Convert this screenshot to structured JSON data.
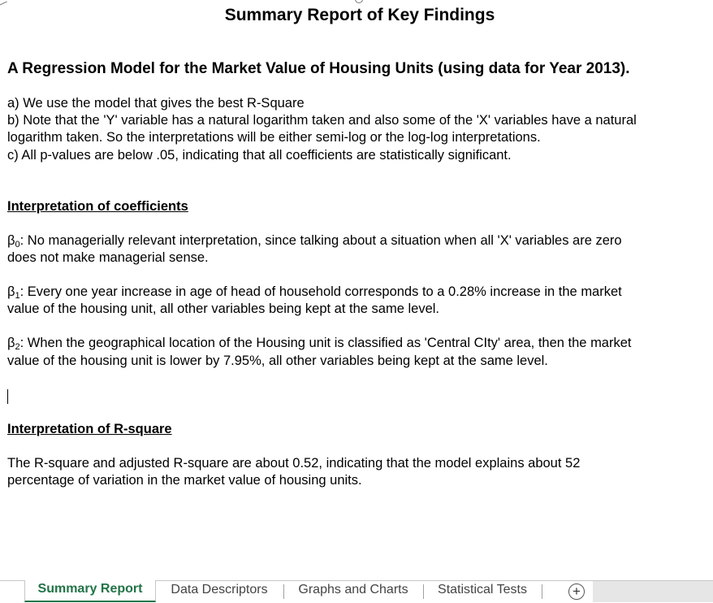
{
  "title": "Summary Report of Key Findings",
  "heading": "A Regression Model for the Market Value of Housing Units (using data for Year 2013).",
  "points": {
    "a": "a)  We use the model that gives the best R-Square",
    "b1": "b)  Note that the 'Y' variable has a natural logarithm taken and also some of the 'X' variables have a natural",
    "b2": "logarithm taken. So the interpretations will be either semi-log or the log-log interpretations.",
    "c": "c)  All p-values are below .05, indicating that all coefficients are statistically significant."
  },
  "coefficients": {
    "header": "Interpretation of coefficients",
    "beta_symbol": "β",
    "beta0": {
      "sub": "0",
      "line1": ": No managerially relevant interpretation, since talking about a situation when all 'X' variables are zero",
      "line2": "does not make managerial sense."
    },
    "beta1": {
      "sub": "1",
      "line1": ": Every one year increase in age of head of household corresponds to a 0.28% increase in the market",
      "line2": "value of the housing unit, all other variables being kept at the same level."
    },
    "beta2": {
      "sub": "2",
      "line1": ": When the geographical location of the Housing unit is classified as 'Central CIty' area, then the market",
      "line2": "value of the housing unit is lower by 7.95%, all other variables being kept at the same level."
    }
  },
  "rsquare": {
    "header": "Interpretation of R-square",
    "line1": "The R-square and adjusted R-square are about 0.52, indicating that the model explains about 52",
    "line2": "percentage of variation in the market value of housing units."
  },
  "tabs": {
    "items": [
      {
        "label": "Summary Report",
        "active": true
      },
      {
        "label": "Data Descriptors",
        "active": false
      },
      {
        "label": "Graphs and Charts",
        "active": false
      },
      {
        "label": "Statistical Tests",
        "active": false
      }
    ],
    "add_icon": "+",
    "active_color": "#217346"
  }
}
